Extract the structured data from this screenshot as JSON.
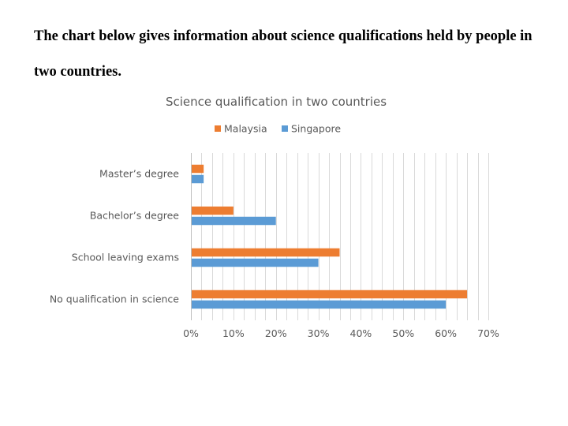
{
  "intro": "The chart below gives information about science qualifications held by people in two countries.",
  "chart_data": {
    "type": "bar",
    "orientation": "horizontal",
    "title": "Science qualification in two countries",
    "categories": [
      "No qualification in science",
      "School leaving exams",
      "Bachelor’s degree",
      "Master’s degree"
    ],
    "series": [
      {
        "name": "Malaysia",
        "color": "#ED7D31",
        "values": [
          65,
          35,
          10,
          3
        ]
      },
      {
        "name": "Singapore",
        "color": "#5B9BD5",
        "values": [
          60,
          30,
          20,
          3
        ]
      }
    ],
    "xlim": [
      0,
      70
    ],
    "xticks": [
      "0%",
      "10%",
      "20%",
      "30%",
      "40%",
      "50%",
      "60%",
      "70%"
    ],
    "xtick_values": [
      0,
      10,
      20,
      30,
      40,
      50,
      60,
      70
    ],
    "legend_position": "top",
    "grid": "vertical",
    "gridline_color": "#D9D9D9"
  }
}
